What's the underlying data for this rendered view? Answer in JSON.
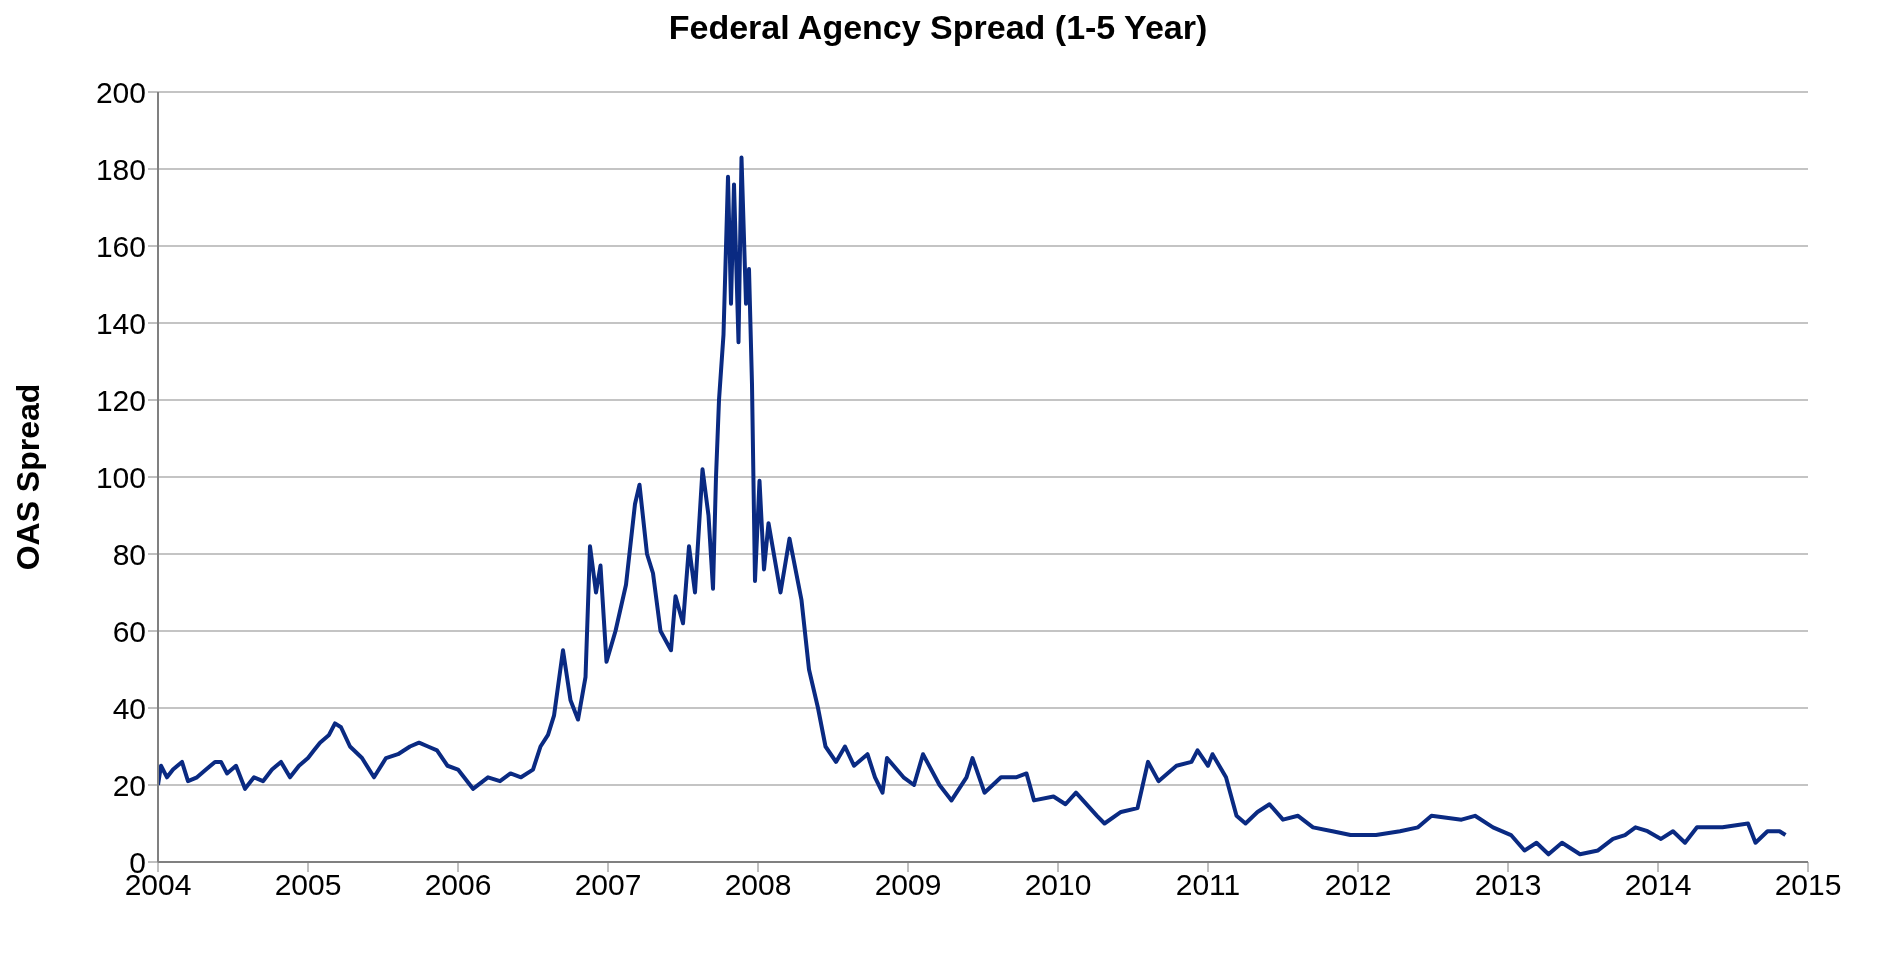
{
  "chart_data": {
    "type": "line",
    "title": "Federal Agency Spread (1-5 Year)",
    "ylabel": "OAS Spread",
    "xlim": [
      2004,
      2015
    ],
    "xticks": [
      2004,
      2005,
      2006,
      2007,
      2008,
      2009,
      2010,
      2011,
      2012,
      2013,
      2014,
      2015
    ],
    "ylim": [
      0,
      200
    ],
    "yticks": [
      0,
      20,
      40,
      60,
      80,
      100,
      120,
      140,
      160,
      180,
      200
    ],
    "grid": "y",
    "marker": "none",
    "line_style": "solid",
    "x": [
      2004.0,
      2004.02,
      2004.06,
      2004.1,
      2004.16,
      2004.2,
      2004.26,
      2004.32,
      2004.38,
      2004.42,
      2004.46,
      2004.52,
      2004.58,
      2004.64,
      2004.7,
      2004.76,
      2004.82,
      2004.88,
      2004.94,
      2005.0,
      2005.04,
      2005.08,
      2005.14,
      2005.18,
      2005.22,
      2005.28,
      2005.36,
      2005.44,
      2005.52,
      2005.6,
      2005.68,
      2005.74,
      2005.8,
      2005.86,
      2005.93,
      2006.0,
      2006.1,
      2006.2,
      2006.28,
      2006.35,
      2006.42,
      2006.5,
      2006.55,
      2006.6,
      2006.64,
      2006.7,
      2006.75,
      2006.8,
      2006.85,
      2006.88,
      2006.92,
      2006.95,
      2006.99,
      2007.05,
      2007.12,
      2007.18,
      2007.21,
      2007.26,
      2007.3,
      2007.35,
      2007.42,
      2007.45,
      2007.5,
      2007.54,
      2007.58,
      2007.63,
      2007.67,
      2007.7,
      2007.72,
      2007.74,
      2007.77,
      2007.8,
      2007.82,
      2007.84,
      2007.87,
      2007.89,
      2007.92,
      2007.94,
      2007.96,
      2007.98,
      2008.01,
      2008.04,
      2008.07,
      2008.15,
      2008.21,
      2008.29,
      2008.34,
      2008.4,
      2008.45,
      2008.52,
      2008.58,
      2008.64,
      2008.73,
      2008.78,
      2008.83,
      2008.86,
      2008.97,
      2009.04,
      2009.1,
      2009.21,
      2009.29,
      2009.39,
      2009.43,
      2009.51,
      2009.62,
      2009.72,
      2009.79,
      2009.84,
      2009.97,
      2010.05,
      2010.12,
      2010.26,
      2010.31,
      2010.42,
      2010.53,
      2010.6,
      2010.67,
      2010.79,
      2010.89,
      2010.93,
      2011.0,
      2011.03,
      2011.12,
      2011.19,
      2011.25,
      2011.33,
      2011.41,
      2011.5,
      2011.6,
      2011.7,
      2011.83,
      2011.95,
      2012.12,
      2012.28,
      2012.4,
      2012.49,
      2012.69,
      2012.78,
      2012.9,
      2013.02,
      2013.11,
      2013.19,
      2013.27,
      2013.36,
      2013.48,
      2013.6,
      2013.7,
      2013.78,
      2013.85,
      2013.93,
      2014.02,
      2014.1,
      2014.18,
      2014.26,
      2014.43,
      2014.6,
      2014.65,
      2014.73,
      2014.81,
      2014.85
    ],
    "series": [
      {
        "color": "#0a2a82",
        "values": [
          20,
          25,
          22,
          24,
          26,
          21,
          22,
          24,
          26,
          26,
          23,
          25,
          19,
          22,
          21,
          24,
          26,
          22,
          25,
          27,
          29,
          31,
          33,
          36,
          35,
          30,
          27,
          22,
          27,
          28,
          30,
          31,
          30,
          29,
          25,
          24,
          19,
          22,
          21,
          23,
          22,
          24,
          30,
          33,
          38,
          55,
          42,
          37,
          48,
          82,
          70,
          77,
          52,
          60,
          72,
          93,
          98,
          80,
          75,
          60,
          55,
          69,
          62,
          82,
          70,
          102,
          90,
          71,
          100,
          120,
          137,
          178,
          145,
          176,
          135,
          183,
          145,
          154,
          124,
          73,
          99,
          76,
          88,
          70,
          84,
          68,
          50,
          40,
          30,
          26,
          30,
          25,
          28,
          22,
          18,
          27,
          22,
          20,
          28,
          20,
          16,
          22,
          27,
          18,
          22,
          22,
          23,
          16,
          17,
          15,
          18,
          12,
          10,
          13,
          14,
          26,
          21,
          25,
          26,
          29,
          25,
          28,
          22,
          12,
          10,
          13,
          15,
          11,
          12,
          9,
          8,
          7,
          7,
          8,
          9,
          12,
          11,
          12,
          9,
          7,
          3,
          5,
          2,
          5,
          2,
          3,
          6,
          7,
          9,
          8,
          6,
          8,
          5,
          9,
          9,
          10,
          5,
          8,
          8,
          7
        ]
      }
    ]
  }
}
